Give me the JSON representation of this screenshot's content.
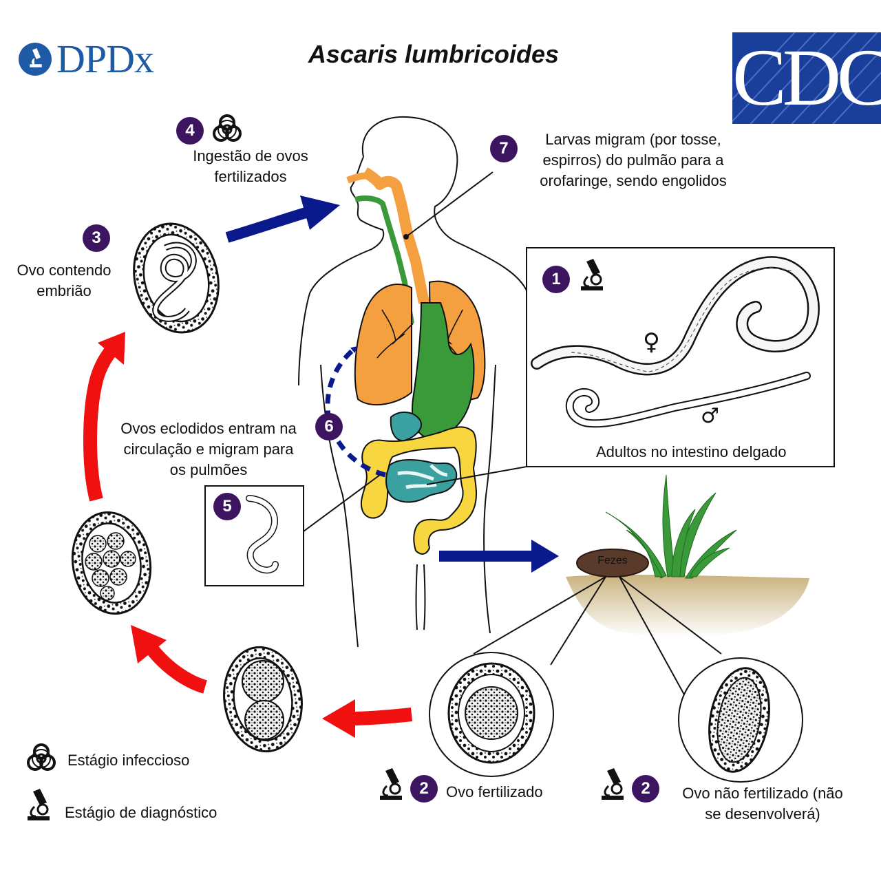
{
  "title": "Ascaris lumbricoides",
  "logos": {
    "dpdx": "DPDx",
    "cdc": "CDC"
  },
  "steps": {
    "s1": {
      "number": "1",
      "label": "Adultos no intestino delgado",
      "icon": "microscope-icon"
    },
    "s2a": {
      "number": "2",
      "label": "Ovo fertilizado",
      "icon": "microscope-icon"
    },
    "s2b": {
      "number": "2",
      "label_line1": "Ovo não fertilizado (não",
      "label_line2": "se desenvolverá)",
      "icon": "microscope-icon"
    },
    "s3": {
      "number": "3",
      "label_line1": "Ovo contendo",
      "label_line2": "embrião"
    },
    "s4": {
      "number": "4",
      "label_line1": "Ingestão de ovos",
      "label_line2": "fertilizados",
      "icon": "biohazard-icon"
    },
    "s5": {
      "number": "5"
    },
    "s6": {
      "number": "6",
      "label_line1": "Ovos eclodidos entram na",
      "label_line2": "circulação e migram para",
      "label_line3": "os pulmões"
    },
    "s7": {
      "number": "7",
      "label_line1": "Larvas migram (por tosse,",
      "label_line2": "espirros) do pulmão para a",
      "label_line3": "orofaringe, sendo engolidos"
    }
  },
  "feces": "Fezes",
  "sex_symbols": {
    "female": "♀",
    "male": "♂"
  },
  "legend": {
    "infectious": {
      "label": "Estágio infeccioso",
      "icon": "biohazard-icon"
    },
    "diagnostic": {
      "label": "Estágio de diagnóstico",
      "icon": "microscope-icon"
    }
  },
  "colors": {
    "badge": "#3c1460",
    "blue_arrow": "#0a1a8c",
    "red_arrow": "#f01010",
    "lungs": "#f5a040",
    "stomach": "#3a9a3a",
    "colon": "#f7d640",
    "small_intestine": "#3aa0a0",
    "dpdx_blue": "#1f5aa6",
    "cdc_blue": "#1a3f9a"
  }
}
